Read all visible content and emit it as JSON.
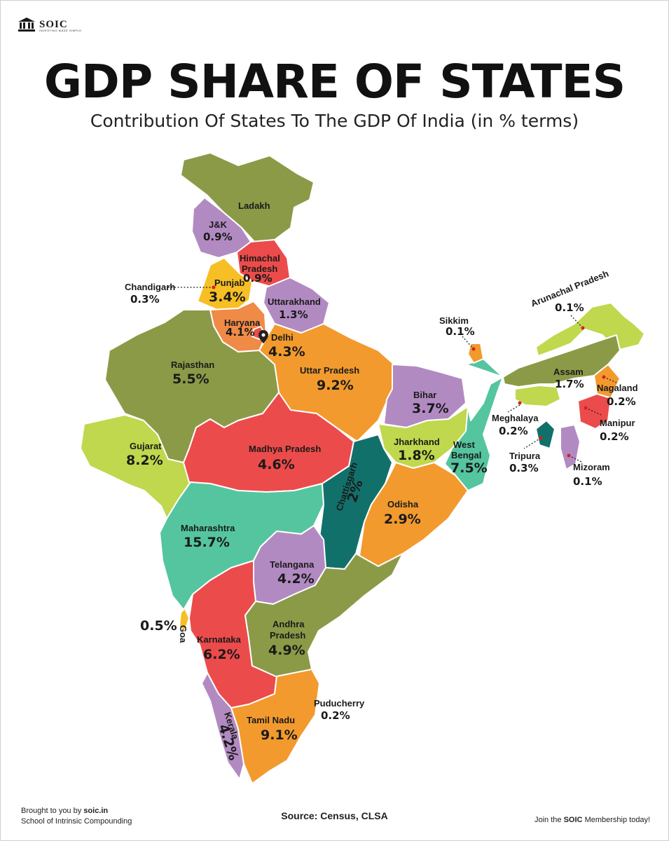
{
  "brand": {
    "name": "SOIC",
    "tagline": "INVESTING MADE SIMPLE"
  },
  "title": "GDP SHARE OF STATES",
  "subtitle": "Contribution Of States To The GDP Of India (in % terms)",
  "colors": {
    "olive": "#8b9a47",
    "purple": "#b28ac2",
    "red": "#ec4b4b",
    "yellow": "#f7bf26",
    "orange": "#f29a2e",
    "lime": "#bfd84d",
    "teal": "#55c5a0",
    "darkteal": "#12706b"
  },
  "regions": [
    {
      "name": "Ladakh",
      "value": ""
    },
    {
      "name": "J&K",
      "value": "0.9%"
    },
    {
      "name": "Himachal Pradesh",
      "value": "0.9%"
    },
    {
      "name": "Chandigarh",
      "value": "0.3%"
    },
    {
      "name": "Punjab",
      "value": "3.4%"
    },
    {
      "name": "Uttarakhand",
      "value": "1.3%"
    },
    {
      "name": "Haryana",
      "value": "4.1%"
    },
    {
      "name": "Delhi",
      "value": "4.3%"
    },
    {
      "name": "Rajasthan",
      "value": "5.5%"
    },
    {
      "name": "Uttar Pradesh",
      "value": "9.2%"
    },
    {
      "name": "Sikkim",
      "value": "0.1%"
    },
    {
      "name": "Arunachal Pradesh",
      "value": "0.1%"
    },
    {
      "name": "Assam",
      "value": "1.7%"
    },
    {
      "name": "Nagaland",
      "value": "0.2%"
    },
    {
      "name": "Bihar",
      "value": "3.7%"
    },
    {
      "name": "Meghalaya",
      "value": "0.2%"
    },
    {
      "name": "Manipur",
      "value": "0.2%"
    },
    {
      "name": "Gujarat",
      "value": "8.2%"
    },
    {
      "name": "Madhya Pradesh",
      "value": "4.6%"
    },
    {
      "name": "Jharkhand",
      "value": "1.8%"
    },
    {
      "name": "West Bengal",
      "value": "7.5%"
    },
    {
      "name": "Tripura",
      "value": "0.3%"
    },
    {
      "name": "Mizoram",
      "value": "0.1%"
    },
    {
      "name": "Chattisgarh",
      "value": "2%"
    },
    {
      "name": "Odisha",
      "value": "2.9%"
    },
    {
      "name": "Maharashtra",
      "value": "15.7%"
    },
    {
      "name": "Telangana",
      "value": "4.2%"
    },
    {
      "name": "Goa",
      "value": "0.5%"
    },
    {
      "name": "Karnataka",
      "value": "6.2%"
    },
    {
      "name": "Andhra Pradesh",
      "value": "4.9%"
    },
    {
      "name": "Puducherry",
      "value": "0.2%"
    },
    {
      "name": "Tamil Nadu",
      "value": "9.1%"
    },
    {
      "name": "Kerala",
      "value": "4.2%"
    }
  ],
  "label_lines": {
    "himachal_1": "Himachal",
    "himachal_2": "Pradesh",
    "andhra_1": "Andhra",
    "andhra_2": "Pradesh",
    "westbengal_1": "West",
    "westbengal_2": "Bengal"
  },
  "footer": {
    "brought_prefix": "Brought to you by",
    "site": "soic.in",
    "school": "School of Intrinsic Compounding",
    "source": "Source: Census, CLSA",
    "join_prefix": "Join the",
    "join_brand": "SOIC",
    "join_suffix": "Membership today!"
  }
}
